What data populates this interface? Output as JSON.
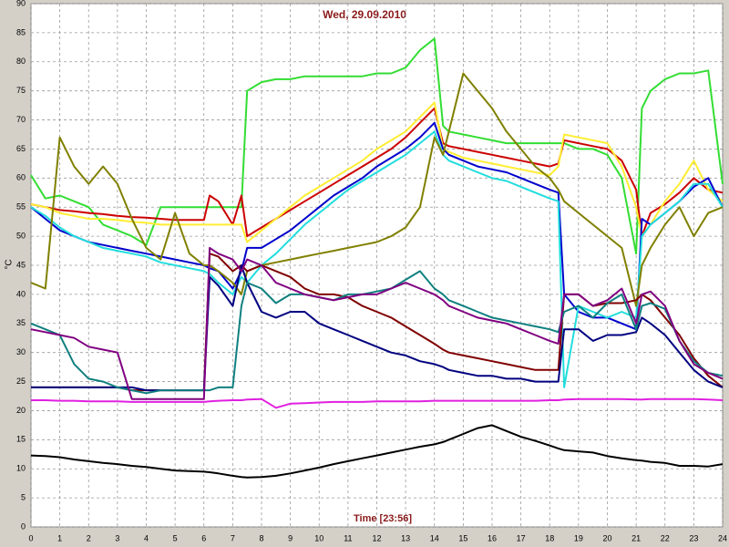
{
  "chart_data": {
    "type": "line",
    "title": "Wed, 29.09.2010",
    "x_label": "Time [23:56]",
    "y_label": "°C",
    "x": [
      0,
      0.5,
      1,
      1.5,
      2,
      2.5,
      3,
      3.5,
      4,
      4.5,
      5,
      5.5,
      6,
      6.2,
      6.5,
      7,
      7.3,
      7.5,
      8,
      8.5,
      9,
      9.5,
      10,
      10.5,
      11,
      11.5,
      12,
      12.5,
      13,
      13.5,
      14,
      14.3,
      14.5,
      15,
      15.5,
      16,
      16.5,
      17,
      17.5,
      18,
      18.3,
      18.5,
      19,
      19.5,
      20,
      20.5,
      21,
      21.2,
      21.5,
      22,
      22.5,
      23,
      23.5,
      24
    ],
    "xlim": [
      0,
      24
    ],
    "xticks": [
      0,
      1,
      2,
      3,
      4,
      5,
      6,
      7,
      8,
      9,
      10,
      11,
      12,
      13,
      14,
      15,
      16,
      17,
      18,
      19,
      20,
      21,
      22,
      23,
      24
    ],
    "ylim": [
      0,
      90
    ],
    "yticks": [
      0,
      5,
      10,
      15,
      20,
      25,
      30,
      35,
      40,
      45,
      50,
      55,
      60,
      65,
      70,
      75,
      80,
      85,
      90
    ],
    "grid": true,
    "series": [
      {
        "color": "#000000",
        "values": [
          12.3,
          12.2,
          12,
          11.6,
          11.3,
          11,
          10.8,
          10.5,
          10.3,
          10,
          9.7,
          9.6,
          9.5,
          9.4,
          9.2,
          8.8,
          8.6,
          8.5,
          8.6,
          8.8,
          9.2,
          9.7,
          10.2,
          10.8,
          11.3,
          11.8,
          12.3,
          12.8,
          13.3,
          13.8,
          14.2,
          14.6,
          15,
          16,
          17,
          17.5,
          16.5,
          15.5,
          14.8,
          14,
          13.5,
          13.2,
          13,
          12.8,
          12.2,
          11.8,
          11.5,
          11.4,
          11.2,
          11,
          10.5,
          10.5,
          10.4,
          10.8
        ]
      },
      {
        "color": "#e020e0",
        "values": [
          21.8,
          21.8,
          21.7,
          21.7,
          21.6,
          21.6,
          21.6,
          21.5,
          21.5,
          21.5,
          21.5,
          21.5,
          21.5,
          21.6,
          21.7,
          21.8,
          21.8,
          21.9,
          22,
          20.5,
          21.2,
          21.3,
          21.4,
          21.5,
          21.5,
          21.5,
          21.6,
          21.6,
          21.6,
          21.6,
          21.7,
          21.7,
          21.7,
          21.7,
          21.7,
          21.7,
          21.7,
          21.7,
          21.7,
          21.8,
          21.8,
          21.9,
          22,
          22,
          22,
          22,
          21.9,
          21.9,
          22,
          22,
          22,
          22,
          21.9,
          21.8
        ]
      },
      {
        "color": "#33dd33",
        "values": [
          60.5,
          56.5,
          57,
          56,
          55,
          52,
          51,
          50,
          48.5,
          55,
          55,
          55,
          55,
          55,
          55,
          55,
          55,
          75,
          76.5,
          77,
          77,
          77.5,
          77.5,
          77.5,
          77.5,
          77.5,
          78,
          78,
          79,
          82,
          84,
          69,
          68,
          67.5,
          67,
          66.5,
          66,
          66,
          66,
          66,
          66,
          66,
          65,
          65,
          64,
          60,
          47,
          72,
          75,
          77,
          78,
          78,
          78.5,
          59
        ]
      },
      {
        "color": "#cc0000",
        "values": [
          55.5,
          55,
          54.5,
          54.3,
          54,
          53.8,
          53.5,
          53.3,
          53.2,
          53,
          52.8,
          52.8,
          52.8,
          57,
          56,
          52,
          57,
          50,
          51.5,
          53,
          54.5,
          56,
          57.5,
          59,
          60.5,
          62,
          63.5,
          65,
          67,
          69.5,
          72,
          66,
          65.5,
          65,
          64.5,
          64,
          63.5,
          63,
          62.5,
          62,
          62.5,
          66.5,
          66,
          65.5,
          65,
          63,
          58,
          50,
          54,
          55.5,
          57.5,
          60,
          58,
          57.5
        ]
      },
      {
        "color": "#ffee33",
        "values": [
          55.5,
          55,
          54,
          53.5,
          53,
          53,
          52.8,
          52.5,
          52.3,
          52,
          52,
          52,
          52,
          52,
          52,
          52,
          52,
          49,
          51,
          53,
          55,
          57,
          58.5,
          60,
          61.5,
          63,
          65,
          66.5,
          68,
          70.5,
          73,
          65,
          64.5,
          63.5,
          63,
          62.5,
          62,
          61.5,
          61,
          60.5,
          62,
          67.5,
          67,
          66.5,
          66,
          62,
          55,
          50,
          52,
          56,
          59,
          63,
          58,
          56
        ]
      },
      {
        "color": "#0000cc",
        "values": [
          55,
          53,
          51,
          50,
          49,
          48.5,
          48,
          47.5,
          47,
          46.5,
          46,
          45.5,
          45,
          44.5,
          44,
          41,
          44,
          48,
          48,
          49.5,
          51,
          53,
          55,
          57,
          58.5,
          60,
          62,
          63.5,
          65,
          67,
          69.5,
          65,
          64,
          63,
          62,
          61.5,
          61,
          60,
          59,
          58,
          57.5,
          40,
          37,
          36,
          36,
          35,
          34,
          53,
          52,
          54,
          56,
          58.5,
          60,
          55
        ]
      },
      {
        "color": "#22dddd",
        "values": [
          55,
          53.5,
          51.5,
          50,
          49,
          48,
          47.5,
          47,
          46.5,
          45.5,
          45,
          44.5,
          44,
          43.5,
          42,
          40,
          43,
          42,
          45,
          47,
          49.5,
          52,
          54,
          56,
          58,
          59.5,
          61,
          62.5,
          64,
          66,
          68,
          64,
          63,
          62,
          61,
          60,
          59.5,
          58.5,
          57.5,
          56.5,
          56,
          24,
          38,
          37,
          36,
          37,
          36,
          50,
          52,
          54,
          56,
          59,
          59,
          55
        ]
      },
      {
        "color": "#808000",
        "values": [
          42,
          41,
          67,
          62,
          59,
          62,
          59,
          53,
          48,
          46,
          54,
          47,
          45,
          45,
          44,
          42,
          40,
          44,
          45,
          45.5,
          46,
          46.5,
          47,
          47.5,
          48,
          48.5,
          49,
          50,
          51.5,
          55,
          67,
          64,
          68,
          78,
          75,
          72,
          68,
          65,
          62,
          60,
          58,
          56,
          54,
          52,
          50,
          48,
          38,
          45,
          48,
          52,
          55,
          50,
          54,
          55
        ]
      },
      {
        "color": "#800000",
        "values": [
          24,
          24,
          24,
          24,
          24,
          24,
          24,
          23.5,
          23.5,
          23.5,
          23.5,
          23.5,
          23.5,
          47,
          46.5,
          44,
          45,
          44,
          45,
          44,
          43,
          41,
          40,
          40,
          39.5,
          38,
          37,
          36,
          34.5,
          33,
          31.5,
          30.5,
          30,
          29.5,
          29,
          28.5,
          28,
          27.5,
          27,
          27,
          27,
          40,
          40,
          38,
          38.5,
          38.5,
          39,
          40,
          39,
          36,
          33,
          29,
          26,
          24
        ]
      },
      {
        "color": "#000080",
        "values": [
          24,
          24,
          24,
          24,
          24,
          24,
          24,
          24,
          23.5,
          23.5,
          23.5,
          23.5,
          23.5,
          43,
          41.5,
          38,
          45,
          42,
          37,
          36,
          37,
          37,
          35,
          34,
          33,
          32,
          31,
          30,
          29.5,
          28.5,
          28,
          27.5,
          27,
          26.5,
          26,
          26,
          25.5,
          25.5,
          25,
          25,
          25,
          34,
          34,
          32,
          33,
          33,
          33.5,
          36,
          35,
          33,
          30,
          27,
          25,
          24
        ]
      },
      {
        "color": "#108080",
        "values": [
          35,
          34,
          33,
          28,
          25.5,
          25,
          24,
          23.5,
          23,
          23.5,
          23.5,
          23.5,
          23.5,
          23.5,
          24,
          24,
          38,
          42,
          41,
          38.5,
          40,
          40,
          39.5,
          39,
          40,
          40,
          40.5,
          41,
          42.5,
          44,
          41,
          40,
          39,
          38,
          37,
          36,
          35.5,
          35,
          34.5,
          34,
          33.5,
          37,
          38,
          36,
          38.5,
          40,
          34,
          38,
          38.5,
          37.5,
          32,
          28.5,
          26.5,
          26
        ]
      },
      {
        "color": "#800080",
        "values": [
          34,
          33.5,
          33,
          32.5,
          31,
          30.5,
          30,
          22,
          22,
          22,
          22,
          22,
          22,
          48,
          47,
          46,
          44,
          46,
          45,
          42,
          41,
          40,
          39.5,
          39,
          39.5,
          40,
          40,
          41,
          42,
          41,
          40,
          39,
          38,
          37,
          36,
          35.5,
          35,
          34,
          33,
          32,
          31.5,
          40,
          40,
          38,
          39,
          41,
          35,
          40,
          40.5,
          38,
          32,
          28,
          26.5,
          25.5
        ]
      }
    ]
  }
}
